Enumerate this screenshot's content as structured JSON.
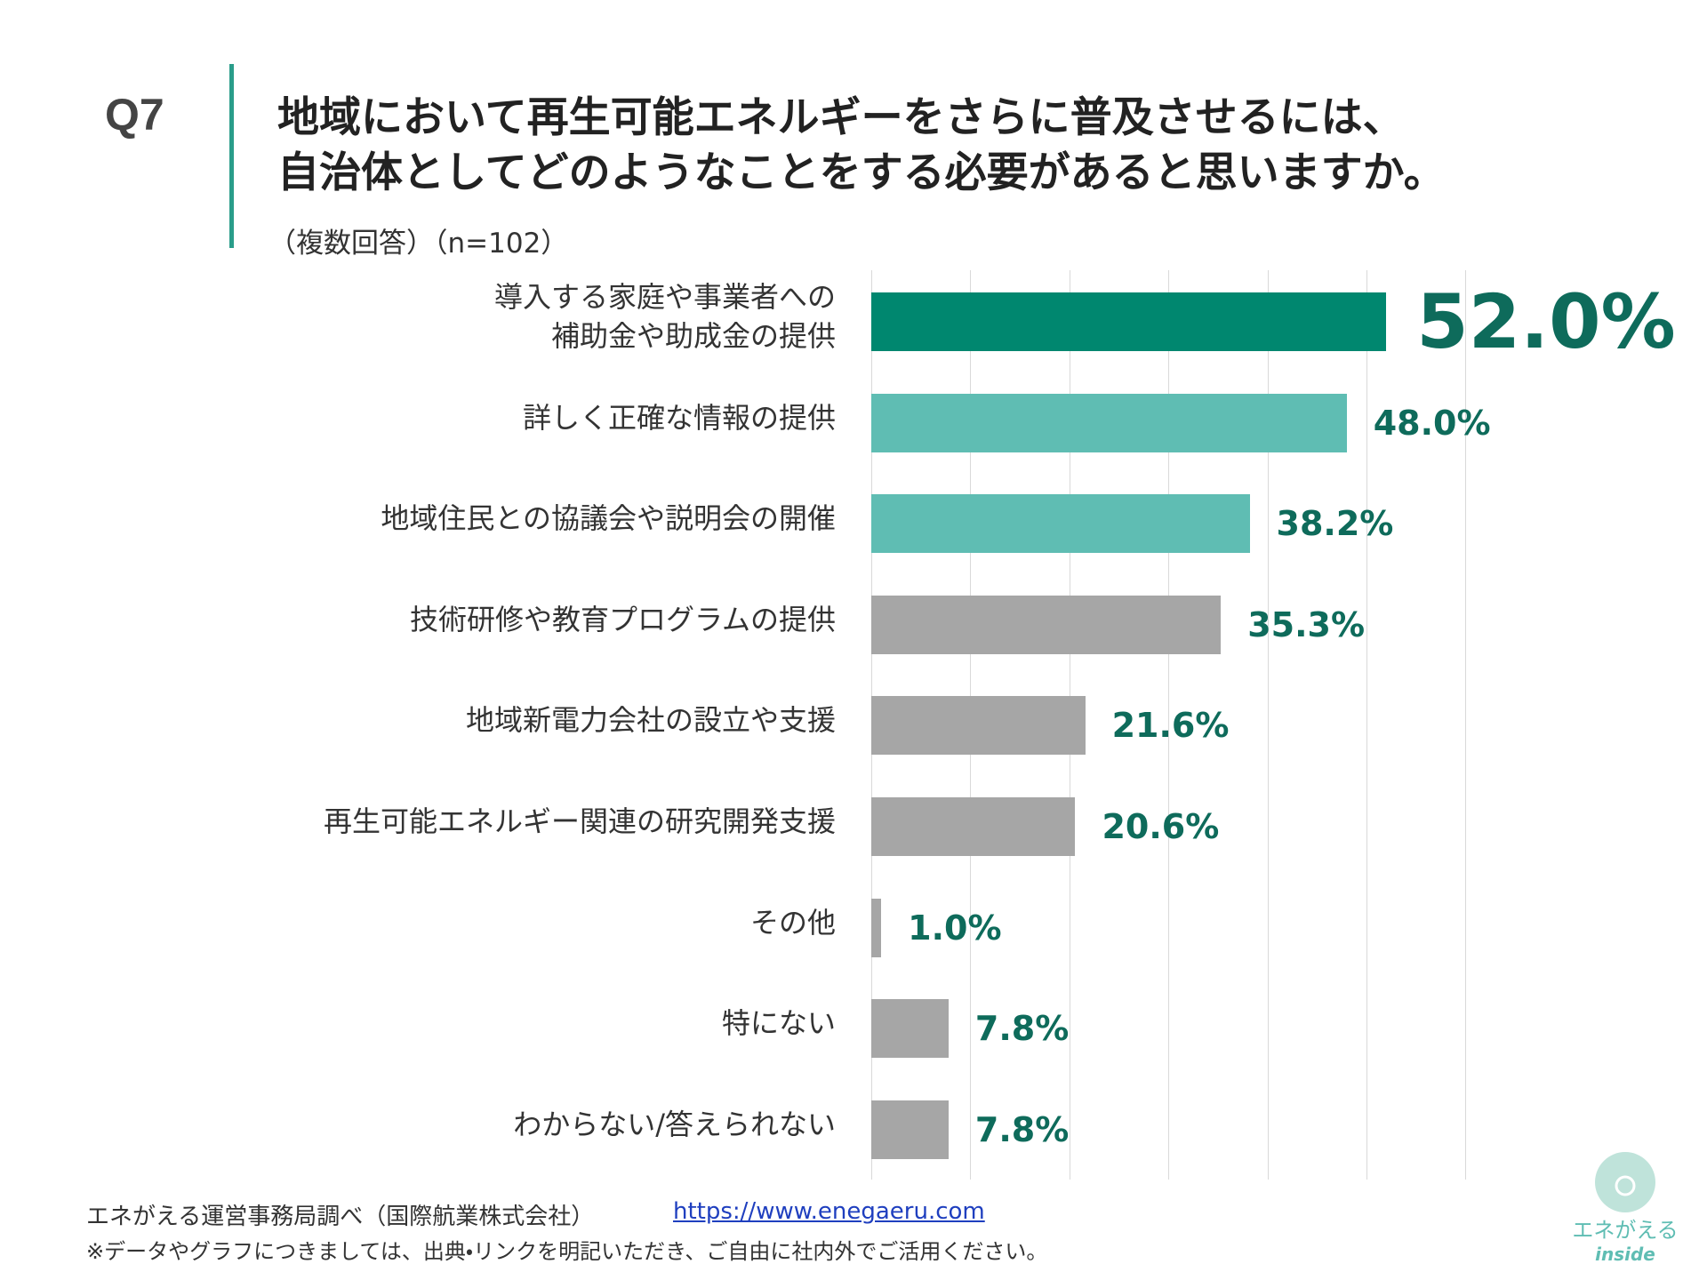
{
  "chart_data": {
    "type": "bar",
    "question": "Q7",
    "title": "地域において再生可能エネルギーをさらに普及させるには、\n自治体としてどのようなことをする必要があると思いますか。",
    "subtitle": "（複数回答）（n=102）",
    "categories": [
      "導入する家庭や事業者への\n補助金や助成金の提供",
      "詳しく正確な情報の提供",
      "地域住民との協議会や説明会の開催",
      "技術研修や教育プログラムの提供",
      "地域新電力会社の設立や支援",
      "再生可能エネルギー関連の研究開発支援",
      "その他",
      "特にない",
      "わからない/答えられない"
    ],
    "values": [
      52.0,
      48.0,
      38.2,
      35.3,
      21.6,
      20.6,
      1.0,
      7.8,
      7.8
    ],
    "value_labels": [
      "52.0%",
      "48.0%",
      "38.2%",
      "35.3%",
      "21.6%",
      "20.6%",
      "1.0%",
      "7.8%",
      "7.8%"
    ],
    "colors": [
      "#00876f",
      "#5fbdb3",
      "#5fbdb3",
      "#a6a6a6",
      "#a6a6a6",
      "#a6a6a6",
      "#a6a6a6",
      "#a6a6a6",
      "#a6a6a6"
    ],
    "label_color": "#0e6b5b",
    "xlim": [
      0,
      60
    ],
    "xticks": [
      0,
      10,
      20,
      30,
      40,
      50,
      60
    ],
    "grid": true,
    "source": "エネがえる運営事務局調べ（国際航業株式会社）",
    "link": "https://www.enegaeru.com",
    "note": "※データやグラフにつきましては、出典・リンクを明記いただき、ご自由に社内外でご活用ください。",
    "logo": [
      "エネがえる",
      "inside"
    ]
  }
}
